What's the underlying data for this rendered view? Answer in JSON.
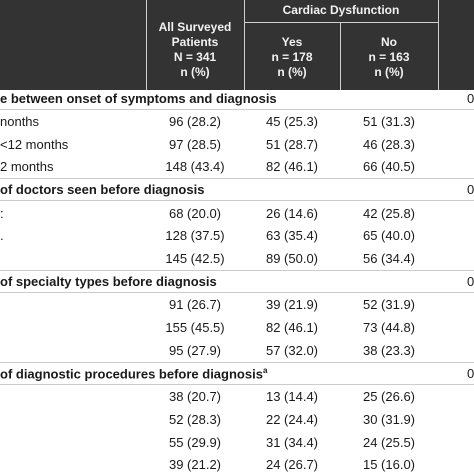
{
  "header": {
    "cardiac_group": "Cardiac Dysfunction",
    "all_patients": [
      "All Surveyed",
      "Patients",
      "N = 341",
      "n (%)"
    ],
    "yes": [
      "Yes",
      "n = 178",
      "n (%)"
    ],
    "no": [
      "No",
      "n = 163",
      "n (%)"
    ]
  },
  "sections": [
    {
      "title": "e between onset of symptoms and diagnosis",
      "p": "0",
      "rows": [
        {
          "label": "nonths",
          "all": "96 (28.2)",
          "yes": "45 (25.3)",
          "no": "51 (31.3)"
        },
        {
          "label": "<12 months",
          "all": "97 (28.5)",
          "yes": "51 (28.7)",
          "no": "46 (28.3)"
        },
        {
          "label": "2 months",
          "all": "148 (43.4)",
          "yes": "82 (46.1)",
          "no": "66 (40.5)"
        }
      ]
    },
    {
      "title": "of doctors seen before diagnosis",
      "p": "0",
      "rows": [
        {
          "label": ":",
          "all": "68 (20.0)",
          "yes": "26 (14.6)",
          "no": "42 (25.8)"
        },
        {
          "label": ".",
          "all": "128 (37.5)",
          "yes": "63 (35.4)",
          "no": "65 (40.0)"
        },
        {
          "label": "",
          "all": "145 (42.5)",
          "yes": "89 (50.0)",
          "no": "56 (34.4)"
        }
      ]
    },
    {
      "title": "of specialty types before diagnosis",
      "p": "0",
      "rows": [
        {
          "label": "",
          "all": "91 (26.7)",
          "yes": "39 (21.9)",
          "no": "52 (31.9)"
        },
        {
          "label": "",
          "all": "155 (45.5)",
          "yes": "82 (46.1)",
          "no": "73 (44.8)"
        },
        {
          "label": "",
          "all": "95 (27.9)",
          "yes": "57 (32.0)",
          "no": "38 (23.3)"
        }
      ]
    },
    {
      "title": "of diagnostic procedures before diagnosis",
      "title_sup": "a",
      "p": "0",
      "rows": [
        {
          "label": "",
          "all": "38 (20.7)",
          "yes": "13 (14.4)",
          "no": "25 (26.6)"
        },
        {
          "label": "",
          "all": "52 (28.3)",
          "yes": "22 (24.4)",
          "no": "30 (31.9)"
        },
        {
          "label": "",
          "all": "55 (29.9)",
          "yes": "31 (34.4)",
          "no": "24 (25.5)"
        },
        {
          "label": "",
          "all": "39 (21.2)",
          "yes": "24 (26.7)",
          "no": "15 (16.0)"
        }
      ]
    }
  ]
}
